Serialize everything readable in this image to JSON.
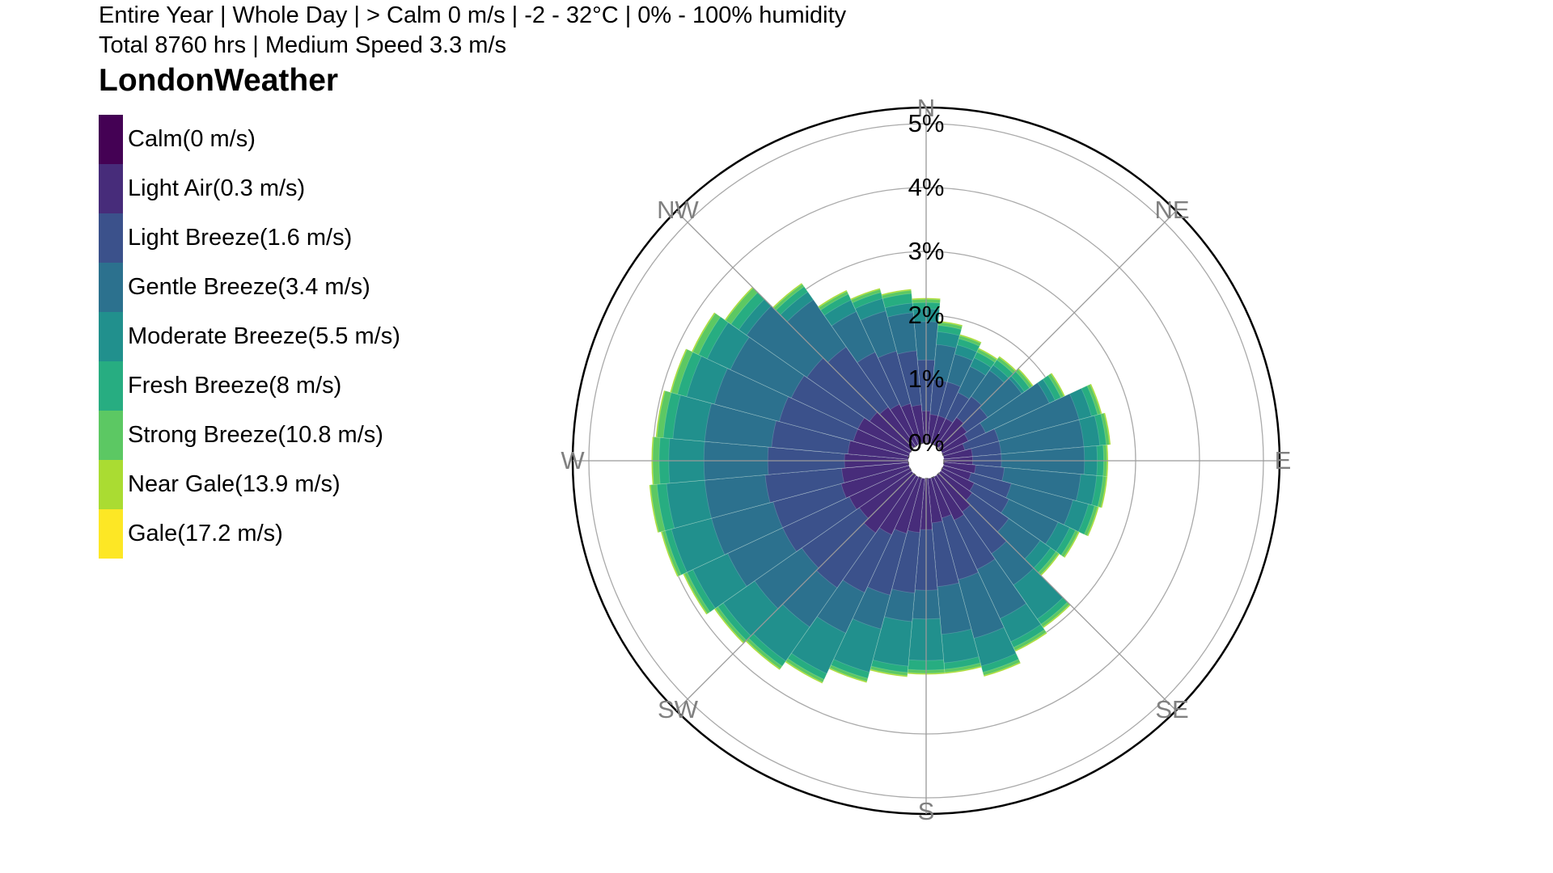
{
  "header": {
    "subtitle_line1": "Entire Year | Whole Day | > Calm 0 m/s | -2 - 32°C | 0% - 100% humidity",
    "subtitle_line2": "Total 8760 hrs | Medium Speed 3.3 m/s",
    "title": "LondonWeather"
  },
  "legend": {
    "items": [
      {
        "label": "Calm(0 m/s)",
        "color": "#440154"
      },
      {
        "label": "Light Air(0.3 m/s)",
        "color": "#472c7a"
      },
      {
        "label": "Light Breeze(1.6 m/s)",
        "color": "#3b518b"
      },
      {
        "label": "Gentle Breeze(3.4 m/s)",
        "color": "#2c718e"
      },
      {
        "label": "Moderate Breeze(5.5 m/s)",
        "color": "#21908d"
      },
      {
        "label": "Fresh Breeze(8 m/s)",
        "color": "#27ad81"
      },
      {
        "label": "Strong Breeze(10.8 m/s)",
        "color": "#5cc863"
      },
      {
        "label": "Near Gale(13.9 m/s)",
        "color": "#aadc32"
      },
      {
        "label": "Gale(17.2 m/s)",
        "color": "#fde725"
      }
    ]
  },
  "chart_data": {
    "type": "windrose",
    "title": "LondonWeather",
    "radial_axis": {
      "unit": "%",
      "range": [
        0,
        5
      ],
      "ticks": [
        "0%",
        "1%",
        "2%",
        "3%",
        "4%",
        "5%"
      ]
    },
    "direction_labels": [
      "N",
      "NE",
      "E",
      "SE",
      "S",
      "SW",
      "W",
      "NW"
    ],
    "grid": true,
    "legend_position": "left",
    "bins": 36,
    "sector_width_deg": 10,
    "directions_deg": [
      0,
      10,
      20,
      30,
      40,
      50,
      60,
      70,
      80,
      90,
      100,
      110,
      120,
      130,
      140,
      150,
      160,
      170,
      180,
      190,
      200,
      210,
      220,
      230,
      240,
      250,
      260,
      270,
      280,
      290,
      300,
      310,
      320,
      330,
      340,
      350
    ],
    "series": [
      {
        "name": "Light Air(0.3 m/s)",
        "color": "#472c7a",
        "values": [
          0.5,
          0.45,
          0.45,
          0.45,
          0.55,
          0.5,
          0.45,
          0.35,
          0.45,
          0.45,
          0.5,
          0.45,
          0.55,
          0.6,
          0.7,
          0.75,
          0.65,
          0.7,
          0.8,
          0.85,
          0.9,
          1.0,
          1.1,
          1.0,
          1.05,
          1.1,
          1.05,
          1.0,
          0.95,
          0.9,
          0.9,
          0.8,
          0.75,
          0.7,
          0.65,
          0.6
        ]
      },
      {
        "name": "Light Breeze(1.6 m/s)",
        "color": "#3b518b",
        "values": [
          1.3,
          1.0,
          1.0,
          0.9,
          0.95,
          0.9,
          0.75,
          0.9,
          0.9,
          0.9,
          0.95,
          1.1,
          1.15,
          1.3,
          1.5,
          1.6,
          1.65,
          1.7,
          1.75,
          1.8,
          1.9,
          2.0,
          2.15,
          2.1,
          2.2,
          2.2,
          2.25,
          2.2,
          2.15,
          2.1,
          2.05,
          2.0,
          1.9,
          1.6,
          1.5,
          1.45
        ]
      },
      {
        "name": "Gentle Breeze(3.4 m/s)",
        "color": "#2c718e",
        "values": [
          1.9,
          1.55,
          1.45,
          1.35,
          1.45,
          1.55,
          1.85,
          2.2,
          2.2,
          2.2,
          2.15,
          2.1,
          2.0,
          1.9,
          2.1,
          2.45,
          2.6,
          2.45,
          2.2,
          2.25,
          2.45,
          2.7,
          2.9,
          3.0,
          3.15,
          3.2,
          3.2,
          3.2,
          3.2,
          3.15,
          3.1,
          3.15,
          2.8,
          2.3,
          2.15,
          2.05
        ]
      },
      {
        "name": "Moderate Breeze(5.5 m/s)",
        "color": "#21908d",
        "values": [
          2.1,
          1.75,
          1.6,
          1.5,
          1.55,
          1.6,
          1.95,
          2.4,
          2.45,
          2.4,
          2.4,
          2.35,
          2.2,
          2.1,
          2.75,
          2.85,
          3.05,
          2.9,
          2.85,
          2.95,
          3.15,
          3.4,
          3.55,
          3.6,
          3.75,
          3.85,
          3.8,
          3.75,
          3.7,
          3.6,
          3.5,
          3.3,
          2.95,
          2.5,
          2.35,
          2.2
        ]
      },
      {
        "name": "Fresh Breeze(8 m/s)",
        "color": "#27ad81",
        "values": [
          2.2,
          1.85,
          1.7,
          1.6,
          1.65,
          1.7,
          2.05,
          2.5,
          2.55,
          2.5,
          2.5,
          2.45,
          2.3,
          2.2,
          2.85,
          2.95,
          3.15,
          3.0,
          3.0,
          3.05,
          3.25,
          3.5,
          3.65,
          3.7,
          3.85,
          3.95,
          3.95,
          3.9,
          3.85,
          3.75,
          3.65,
          3.45,
          3.05,
          2.6,
          2.45,
          2.35
        ]
      },
      {
        "name": "Strong Breeze(10.8 m/s)",
        "color": "#5cc863",
        "values": [
          2.25,
          1.9,
          1.75,
          1.65,
          1.7,
          1.75,
          2.1,
          2.55,
          2.6,
          2.55,
          2.55,
          2.5,
          2.35,
          2.25,
          2.9,
          3.0,
          3.2,
          3.05,
          3.05,
          3.1,
          3.3,
          3.55,
          3.7,
          3.75,
          3.9,
          4.0,
          4.05,
          4.0,
          3.95,
          3.85,
          3.75,
          3.55,
          3.1,
          2.65,
          2.5,
          2.4
        ]
      },
      {
        "name": "Near Gale(13.9 m/s)",
        "color": "#aadc32",
        "values": [
          2.27,
          1.92,
          1.77,
          1.67,
          1.72,
          1.77,
          2.12,
          2.57,
          2.62,
          2.57,
          2.57,
          2.52,
          2.37,
          2.27,
          2.92,
          3.02,
          3.22,
          3.07,
          3.07,
          3.12,
          3.32,
          3.57,
          3.72,
          3.77,
          3.92,
          4.02,
          4.07,
          4.02,
          3.97,
          3.87,
          3.77,
          3.57,
          3.12,
          2.67,
          2.52,
          2.42
        ]
      }
    ]
  }
}
